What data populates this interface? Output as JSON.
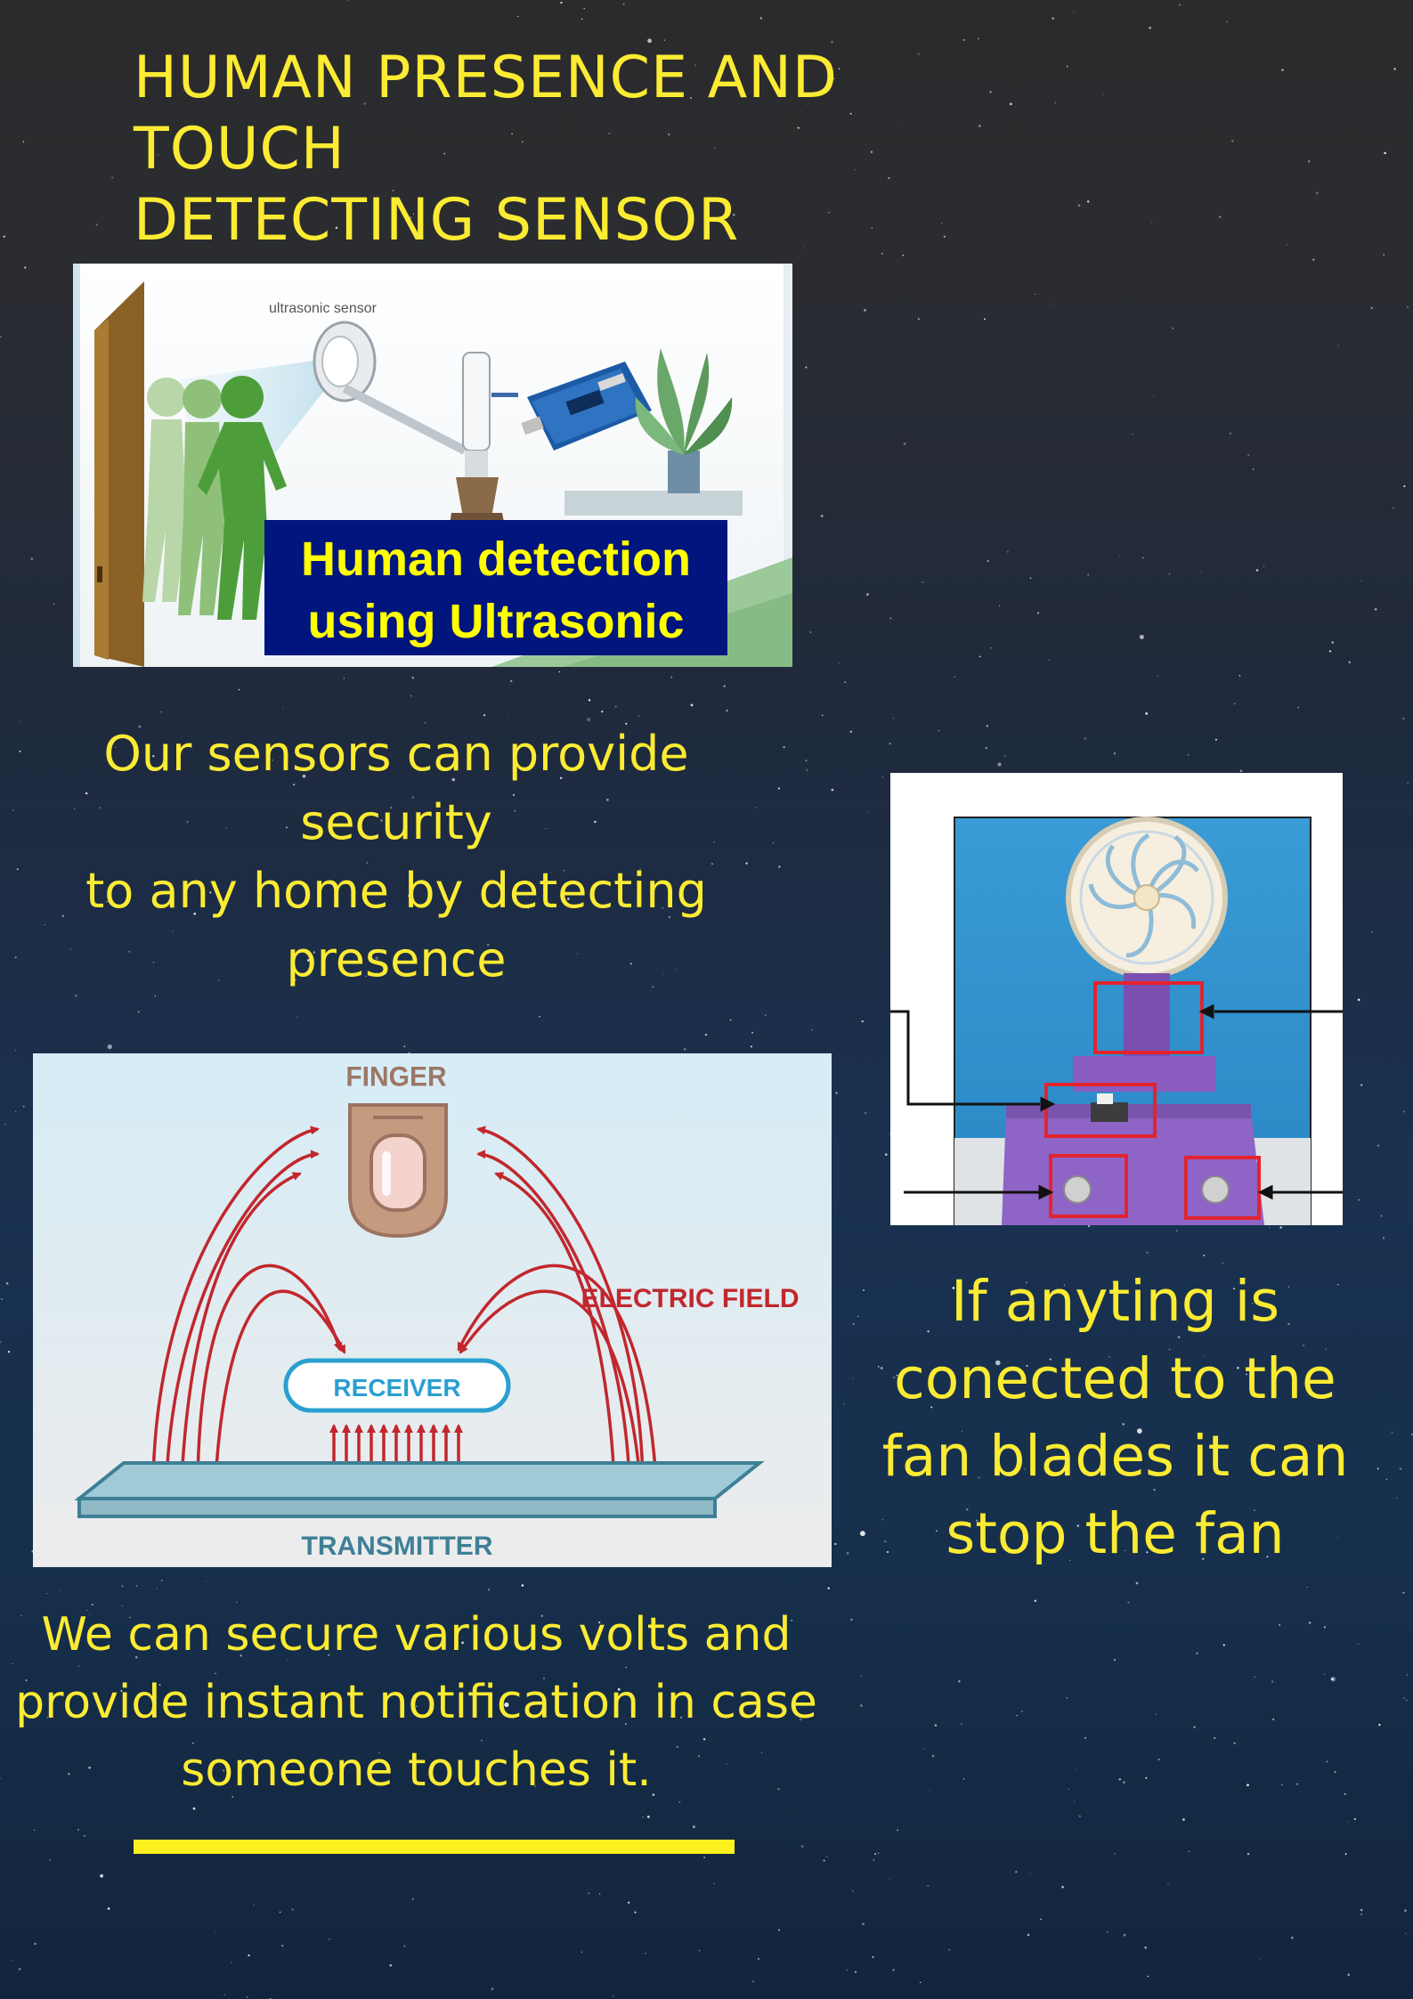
{
  "poster": {
    "title_lines": [
      "HUMAN PRESENCE AND TOUCH",
      "DETECTING SENSOR"
    ],
    "accent_color": "#fbeb33",
    "background_color": "#1a2e49"
  },
  "ultrasonic_figure": {
    "sensor_label": "ultrasonic sensor",
    "banner_lines": [
      "Human detection",
      "using Ultrasonic"
    ],
    "banner_color": "#00157e",
    "banner_text_color": "#ffff00"
  },
  "ultrasonic_caption_lines": [
    "Our sensors can provide security",
    "to any home by detecting",
    "presence"
  ],
  "fan_caption_lines": [
    "If anyting is",
    "conected to the",
    "fan blades it can",
    "stop the fan"
  ],
  "touch_figure": {
    "finger_label": "FINGER",
    "field_label": "ELECTRIC FIELD",
    "receiver_label": "RECEIVER",
    "transmitter_label": "TRANSMITTER",
    "field_color": "#c1272d",
    "receiver_color": "#2a9fd0"
  },
  "touch_caption_lines": [
    "We can secure various volts and",
    "provide instant notification in case",
    "someone touches it."
  ]
}
